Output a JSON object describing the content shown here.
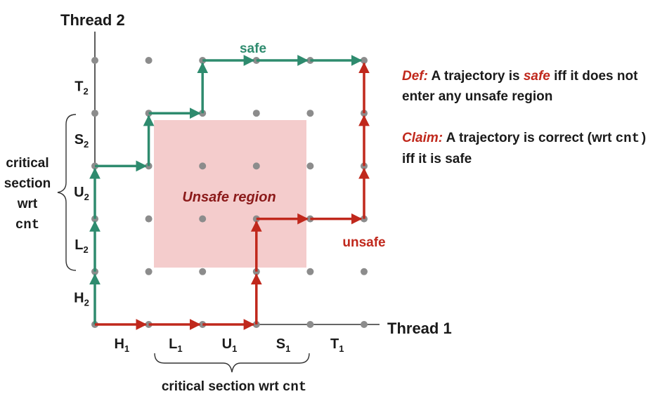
{
  "axes": {
    "y_label": "Thread 2",
    "x_label": "Thread 1"
  },
  "x_segments": [
    {
      "main": "H",
      "sub": "1"
    },
    {
      "main": "L",
      "sub": "1"
    },
    {
      "main": "U",
      "sub": "1"
    },
    {
      "main": "S",
      "sub": "1"
    },
    {
      "main": "T",
      "sub": "1"
    }
  ],
  "y_segments": [
    {
      "main": "H",
      "sub": "2"
    },
    {
      "main": "L",
      "sub": "2"
    },
    {
      "main": "U",
      "sub": "2"
    },
    {
      "main": "S",
      "sub": "2"
    },
    {
      "main": "T",
      "sub": "2"
    }
  ],
  "unsafe_region": {
    "label": "Unsafe region",
    "color": "#f4cccc"
  },
  "trajectories": {
    "safe": {
      "label": "safe",
      "color": "#2e8b6e",
      "path": [
        [
          0,
          0
        ],
        [
          0,
          3
        ],
        [
          1,
          3
        ],
        [
          1,
          4
        ],
        [
          2,
          4
        ],
        [
          2,
          5
        ],
        [
          5,
          5
        ]
      ]
    },
    "unsafe": {
      "label": "unsafe",
      "color": "#c0281c",
      "path": [
        [
          0,
          0
        ],
        [
          3,
          0
        ],
        [
          3,
          2
        ],
        [
          5,
          2
        ],
        [
          5,
          5
        ]
      ]
    }
  },
  "critical_section_x": {
    "text": "critical section wrt",
    "code": "cnt"
  },
  "critical_section_y": {
    "lines": [
      "critical",
      "section",
      "wrt"
    ],
    "code": "cnt"
  },
  "definitions": {
    "def": {
      "keyword": "Def:",
      "text_before": "A trajectory is",
      "highlight": "safe",
      "text_after": "iff it does not enter any unsafe region"
    },
    "claim": {
      "keyword": "Claim:",
      "text_before": "A trajectory is  correct (wrt",
      "code": "cnt)",
      "text_after": "iff it is safe"
    }
  },
  "colors": {
    "grid_dot": "#8c8c8c",
    "axis": "#333333"
  }
}
